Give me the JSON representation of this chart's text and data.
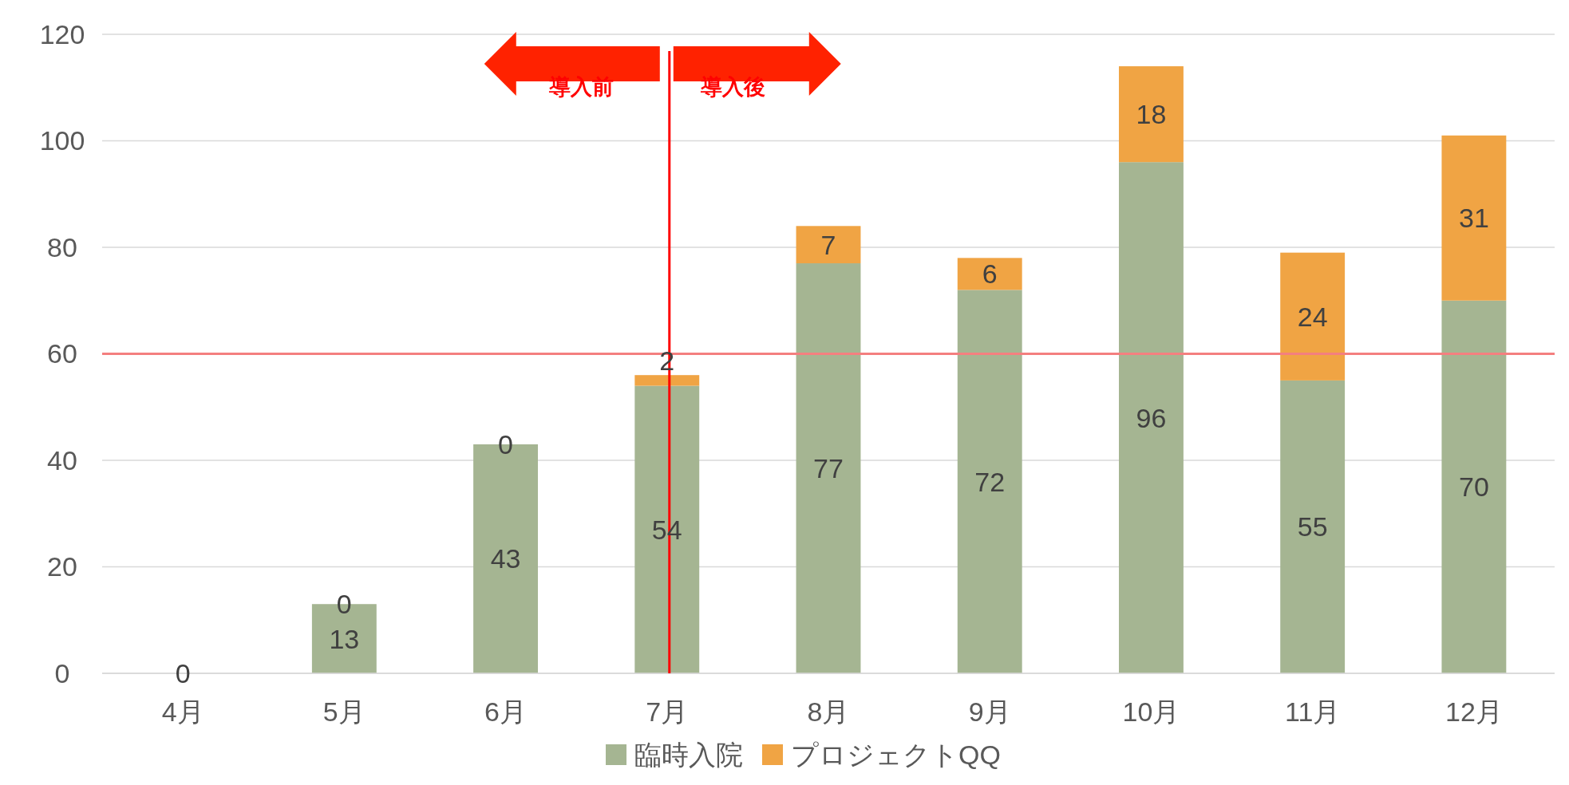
{
  "chart_data": {
    "type": "bar",
    "stacked": true,
    "categories": [
      "4月",
      "5月",
      "6月",
      "7月",
      "8月",
      "9月",
      "10月",
      "11月",
      "12月"
    ],
    "series": [
      {
        "name": "臨時入院",
        "color": "#a5b592",
        "values": [
          0,
          13,
          43,
          54,
          77,
          72,
          96,
          55,
          70
        ],
        "value_labels": [
          null,
          "13",
          "43",
          "54",
          "77",
          "72",
          "96",
          "55",
          "70"
        ]
      },
      {
        "name": "プロジェクトQQ",
        "color": "#f0a444",
        "values": [
          0,
          0,
          0,
          2,
          7,
          6,
          18,
          24,
          31
        ]
      }
    ],
    "ylim": [
      0,
      120
    ],
    "yticks": [
      0,
      20,
      40,
      60,
      80,
      100,
      120
    ],
    "grid": "y",
    "legend": "bottom",
    "data_labels": true,
    "ref_lines": [
      {
        "axis": "y",
        "value": 60,
        "color": "#f47f7f"
      },
      {
        "axis": "x",
        "value": "7月",
        "color": "#ff0000"
      }
    ],
    "annotations": [
      "導入前",
      "導入後"
    ]
  }
}
